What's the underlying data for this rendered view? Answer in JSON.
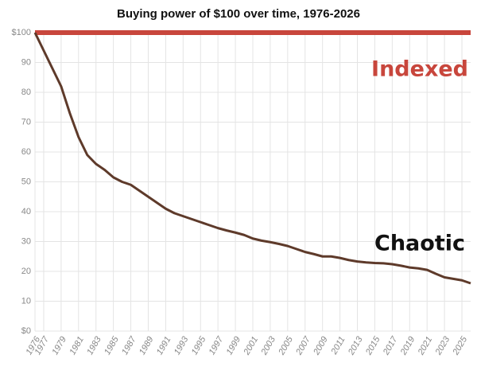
{
  "chart_data": {
    "type": "line",
    "title": "Buying power of $100 over time, 1976-2026",
    "x": [
      1976,
      1977,
      1978,
      1979,
      1980,
      1981,
      1982,
      1983,
      1984,
      1985,
      1986,
      1987,
      1988,
      1989,
      1990,
      1991,
      1992,
      1993,
      1994,
      1995,
      1996,
      1997,
      1998,
      1999,
      2000,
      2001,
      2002,
      2003,
      2004,
      2005,
      2006,
      2007,
      2008,
      2009,
      2010,
      2011,
      2012,
      2013,
      2014,
      2015,
      2016,
      2017,
      2018,
      2019,
      2020,
      2021,
      2022,
      2023,
      2024,
      2025,
      2026
    ],
    "series": [
      {
        "name": "Indexed",
        "color": "#c8463c",
        "values": [
          100,
          100,
          100,
          100,
          100,
          100,
          100,
          100,
          100,
          100,
          100,
          100,
          100,
          100,
          100,
          100,
          100,
          100,
          100,
          100,
          100,
          100,
          100,
          100,
          100,
          100,
          100,
          100,
          100,
          100,
          100,
          100,
          100,
          100,
          100,
          100,
          100,
          100,
          100,
          100,
          100,
          100,
          100,
          100,
          100,
          100,
          100,
          100,
          100,
          100,
          100
        ]
      },
      {
        "name": "Chaotic",
        "color": "#5e3a2a",
        "values": [
          100,
          94,
          88,
          82,
          73,
          65,
          59,
          56,
          54,
          51.5,
          50,
          49,
          47,
          45,
          43,
          41,
          39.5,
          38.5,
          37.5,
          36.5,
          35.5,
          34.5,
          33.7,
          33,
          32.2,
          31,
          30.3,
          29.8,
          29.2,
          28.5,
          27.5,
          26.5,
          25.8,
          25,
          25,
          24.5,
          23.8,
          23.3,
          23,
          22.8,
          22.7,
          22.4,
          21.9,
          21.3,
          21,
          20.5,
          19.2,
          18,
          17.5,
          17,
          16
        ]
      }
    ],
    "xlim": [
      1976,
      2026
    ],
    "xticks": [
      1976,
      1977,
      1979,
      1981,
      1983,
      1985,
      1987,
      1989,
      1991,
      1993,
      1995,
      1997,
      1999,
      2001,
      2003,
      2005,
      2007,
      2009,
      2011,
      2013,
      2015,
      2017,
      2019,
      2021,
      2023,
      2025
    ],
    "ylim": [
      0,
      100
    ],
    "yticks": [
      {
        "value": 0,
        "label": "$0"
      },
      10,
      20,
      30,
      40,
      50,
      60,
      70,
      80,
      90,
      {
        "value": 100,
        "label": "$100"
      }
    ],
    "grid": true
  }
}
